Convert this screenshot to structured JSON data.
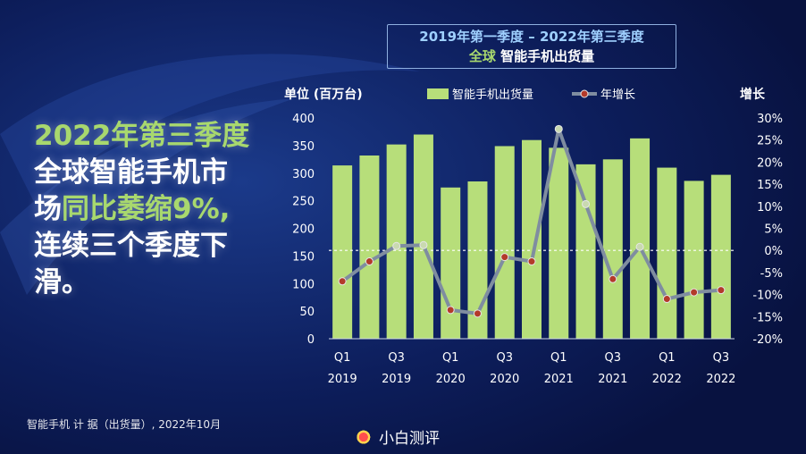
{
  "headline": {
    "line1_hl": "2022年第三季度",
    "line2": "全球智能手机市",
    "line3a": "场",
    "line3_hl": "同比萎缩9%,",
    "line4": "连续三个季度下",
    "line5": "滑。"
  },
  "title_box": {
    "line1": "2019年第一季度 – 2022年第三季度",
    "line2a": "全球",
    "line2b": " 智能手机出货量"
  },
  "footer": "智能手机 计 据（出货量）, 2022年10月",
  "watermark": "小白测评",
  "colors": {
    "background": "#0b1850",
    "bar": "#b7de7a",
    "line": "#7f8da0",
    "marker_negative": "#b33a2a",
    "marker_positive": "#c9d9b0",
    "accent_text": "#a8d86e"
  },
  "chart_data": {
    "type": "bar+line",
    "y_left_label": "单位 (百万台)",
    "y_right_label": "增长",
    "legend": [
      "智能手机出货量",
      "年增长"
    ],
    "legend_position": "top",
    "x_tick_labels": [
      {
        "quarter": "Q1",
        "year": "2019",
        "index": 0
      },
      {
        "quarter": "Q3",
        "year": "2019",
        "index": 2
      },
      {
        "quarter": "Q1",
        "year": "2020",
        "index": 4
      },
      {
        "quarter": "Q3",
        "year": "2020",
        "index": 6
      },
      {
        "quarter": "Q1",
        "year": "2021",
        "index": 8
      },
      {
        "quarter": "Q3",
        "year": "2021",
        "index": 10
      },
      {
        "quarter": "Q1",
        "year": "2022",
        "index": 12
      },
      {
        "quarter": "Q3",
        "year": "2022",
        "index": 14
      }
    ],
    "categories": [
      "Q1 2019",
      "Q2 2019",
      "Q3 2019",
      "Q4 2019",
      "Q1 2020",
      "Q2 2020",
      "Q3 2020",
      "Q4 2020",
      "Q1 2021",
      "Q2 2021",
      "Q3 2021",
      "Q4 2021",
      "Q1 2022",
      "Q2 2022",
      "Q3 2022"
    ],
    "series": [
      {
        "name": "智能手机出货量",
        "type": "bar",
        "axis": "left",
        "values": [
          314,
          332,
          352,
          370,
          274,
          285,
          349,
          360,
          346,
          316,
          325,
          363,
          310,
          286,
          297
        ]
      },
      {
        "name": "年增长",
        "type": "line",
        "axis": "right",
        "values": [
          -7,
          -2.5,
          1,
          1.2,
          -13.5,
          -14.3,
          -1.5,
          -2.5,
          27.5,
          10.5,
          -6.5,
          0.8,
          -11,
          -9.5,
          -9
        ]
      }
    ],
    "y_left": {
      "min": 0,
      "max": 400,
      "ticks": [
        0,
        50,
        100,
        150,
        200,
        250,
        300,
        350,
        400
      ]
    },
    "y_right": {
      "min": -20,
      "max": 30,
      "ticks": [
        "30%",
        "25%",
        "20%",
        "15%",
        "10%",
        "5%",
        "0%",
        "-5%",
        "-10%",
        "-15%",
        "-20%"
      ]
    },
    "zero_line": "dashed"
  }
}
